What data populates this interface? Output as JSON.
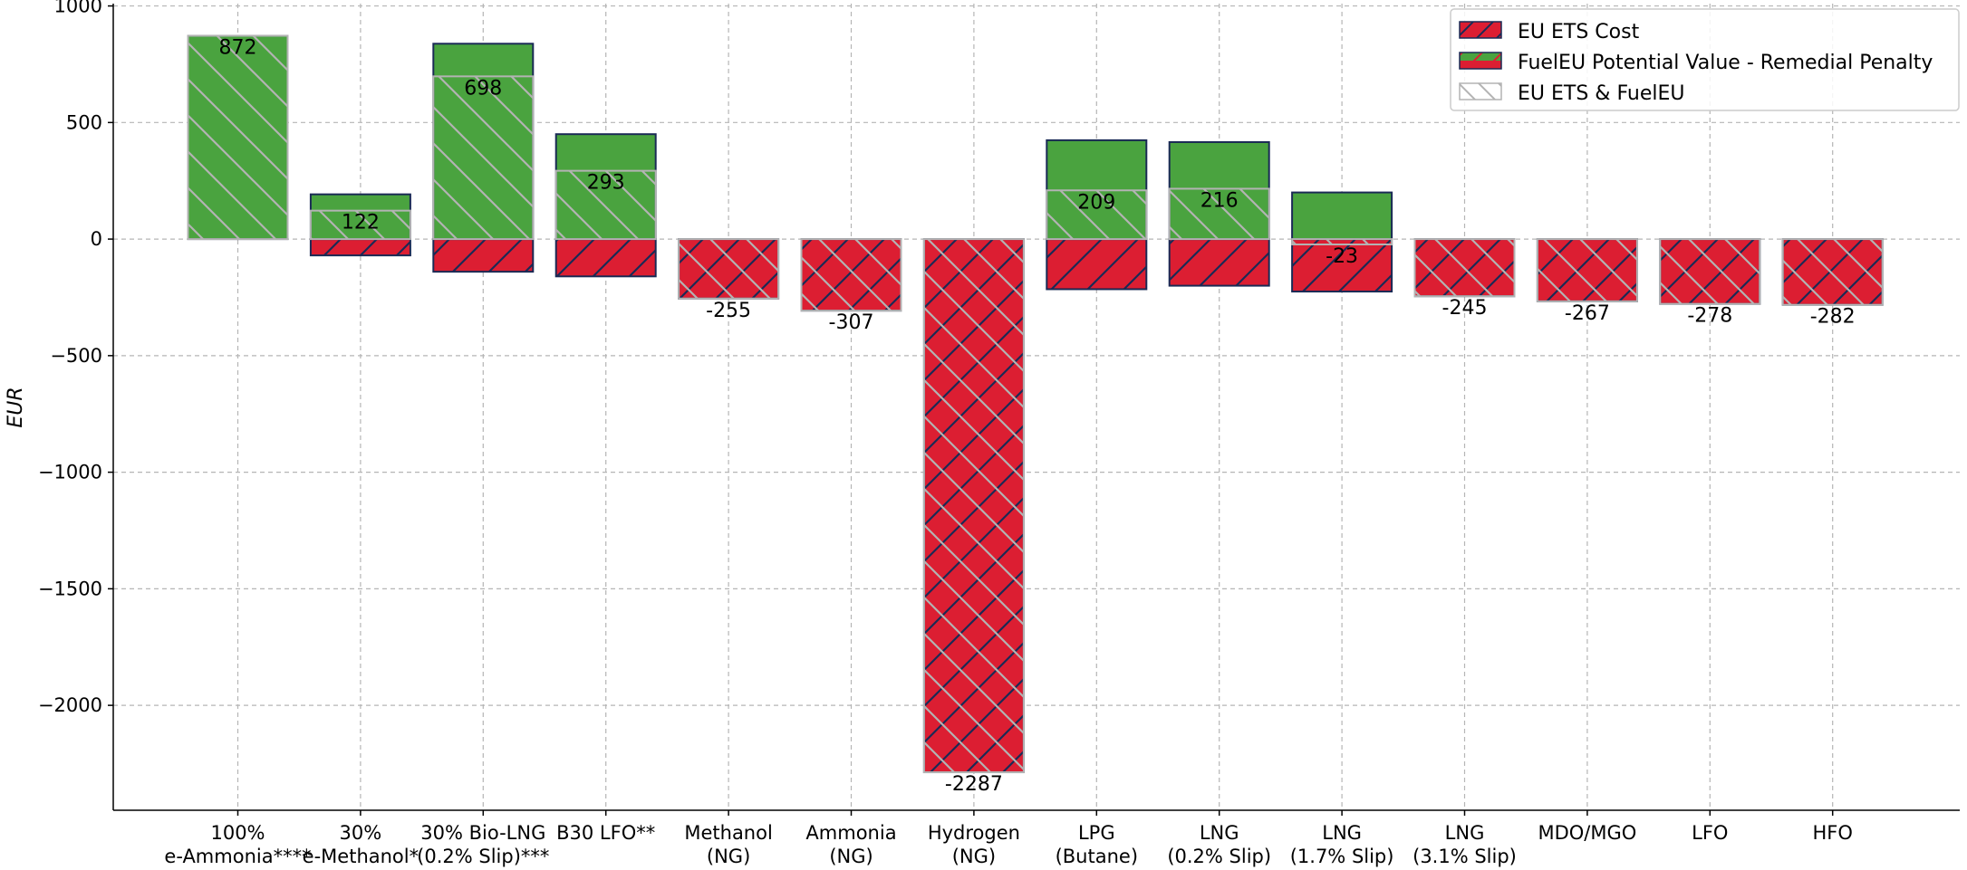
{
  "chart_data": {
    "type": "bar",
    "title": "",
    "xlabel": "",
    "ylabel": "EUR",
    "ylim": [
      -2450,
      1010
    ],
    "yticks": [
      1000,
      500,
      0,
      -500,
      -1000,
      -1500,
      -2000
    ],
    "ytick_labels": [
      "1000",
      "500",
      "0",
      "−500",
      "−1000",
      "−1500",
      "−2000"
    ],
    "grid": true,
    "legend_position": "top-right",
    "categories": [
      [
        "100%",
        "e-Ammonia****"
      ],
      [
        "30%",
        "e-Methanol*"
      ],
      [
        "30% Bio-LNG",
        "(0.2% Slip)***"
      ],
      [
        "B30 LFO**"
      ],
      [
        "Methanol",
        "(NG)"
      ],
      [
        "Ammonia",
        "(NG)"
      ],
      [
        "Hydrogen",
        "(NG)"
      ],
      [
        "LPG",
        "(Butane)"
      ],
      [
        "LNG",
        "(0.2% Slip)"
      ],
      [
        "LNG",
        "(1.7% Slip)"
      ],
      [
        "LNG",
        "(3.1% Slip)"
      ],
      [
        "MDO/MGO"
      ],
      [
        "LFO"
      ],
      [
        "HFO"
      ]
    ],
    "series": [
      {
        "name": "EU ETS Cost",
        "values": [
          0,
          -70,
          -140,
          -160,
          -255,
          -307,
          -2287,
          -215,
          -200,
          -225,
          -245,
          -267,
          -278,
          -282
        ]
      },
      {
        "name": "FuelEU Potential Value - Remedial Penalty",
        "values": [
          872,
          192,
          838,
          450,
          0,
          0,
          0,
          424,
          416,
          200,
          0,
          0,
          0,
          0
        ]
      },
      {
        "name": "EU ETS & FuelEU",
        "values": [
          872,
          122,
          698,
          293,
          -255,
          -307,
          -2287,
          209,
          216,
          -23,
          -245,
          -267,
          -278,
          -282
        ]
      }
    ],
    "data_labels": [
      "872",
      "122",
      "698",
      "293",
      "-255",
      "-307",
      "-2287",
      "209",
      "216",
      "-23",
      "-245",
      "-267",
      "-278",
      "-282"
    ],
    "colors": {
      "ets_cost": "#dc1e32",
      "fueleu": "#4aa33f",
      "combined_edge": "#b3b3b3",
      "bar_edge": "#1a2a55",
      "grid": "#b5b5b5"
    }
  }
}
